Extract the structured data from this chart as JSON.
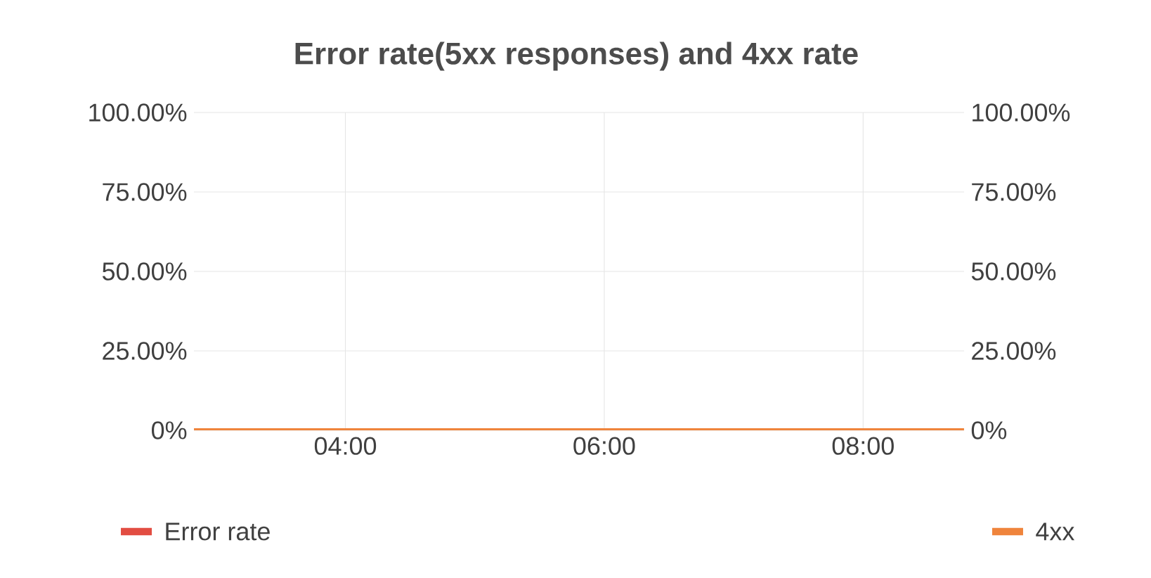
{
  "chart_data": {
    "type": "line",
    "title": "Error rate(5xx responses) and 4xx rate",
    "x": [
      2.83,
      8.78
    ],
    "series": [
      {
        "name": "Error rate",
        "color": "#e24d42",
        "values": [
          null,
          null
        ]
      },
      {
        "name": "4xx",
        "color": "#ef843c",
        "axis": "y2",
        "values": [
          0,
          0
        ]
      }
    ],
    "xlim": [
      2.83,
      8.78
    ],
    "xticks": [
      {
        "value": 4,
        "label": "04:00"
      },
      {
        "value": 6,
        "label": "06:00"
      },
      {
        "value": 8,
        "label": "08:00"
      }
    ],
    "ylim": [
      0,
      100
    ],
    "yticks": [
      {
        "value": 0,
        "label": "0%"
      },
      {
        "value": 25,
        "label": "25.00%"
      },
      {
        "value": 50,
        "label": "50.00%"
      },
      {
        "value": 75,
        "label": "75.00%"
      },
      {
        "value": 100,
        "label": "100.00%"
      }
    ],
    "y2lim": [
      0,
      100
    ],
    "y2ticks": [
      {
        "value": 0,
        "label": "0%"
      },
      {
        "value": 25,
        "label": "25.00%"
      },
      {
        "value": 50,
        "label": "50.00%"
      },
      {
        "value": 75,
        "label": "75.00%"
      },
      {
        "value": 100,
        "label": "100.00%"
      }
    ],
    "grid": true,
    "legend": "bottom",
    "marker": "none",
    "line_style": "solid"
  }
}
